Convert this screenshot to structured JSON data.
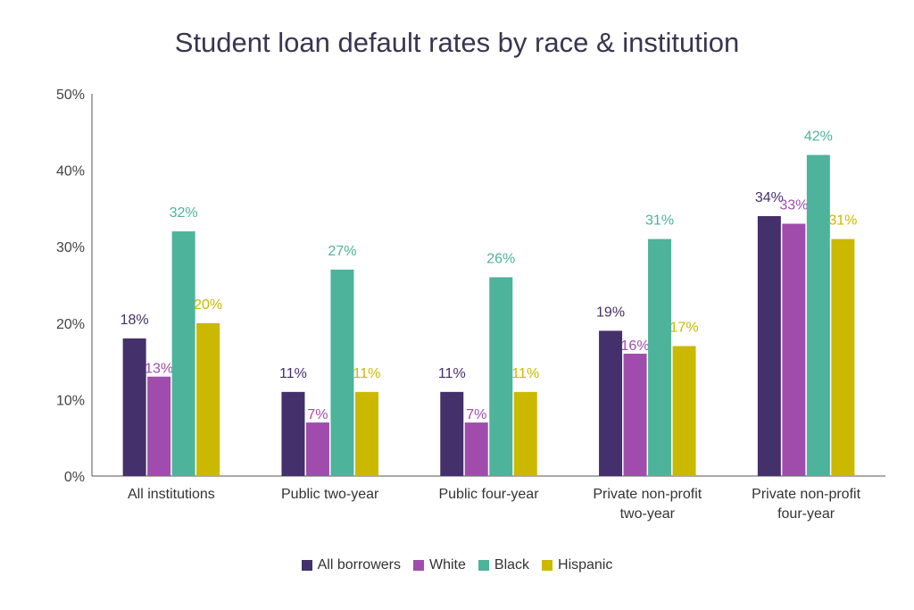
{
  "chart_data": {
    "type": "bar",
    "title": "Student loan default rates by race & institution",
    "categories": [
      [
        "All institutions"
      ],
      [
        "Public two-year"
      ],
      [
        "Public four-year"
      ],
      [
        "Private non-profit",
        "two-year"
      ],
      [
        "Private non-profit",
        "four-year"
      ]
    ],
    "series": [
      {
        "name": "All borrowers",
        "color": "#44306a",
        "values": [
          18,
          11,
          11,
          19,
          34
        ],
        "labels": [
          "18%",
          "11%",
          "11%",
          "19%",
          "34%"
        ]
      },
      {
        "name": "White",
        "color": "#a04cad",
        "values": [
          13,
          7,
          7,
          16,
          33
        ],
        "labels": [
          "13%",
          "7%",
          "7%",
          "16%",
          "33%"
        ]
      },
      {
        "name": "Black",
        "color": "#4db39a",
        "values": [
          32,
          27,
          26,
          31,
          42
        ],
        "labels": [
          "32%",
          "27%",
          "26%",
          "31%",
          "42%"
        ]
      },
      {
        "name": "Hispanic",
        "color": "#cbb800",
        "values": [
          20,
          11,
          11,
          17,
          31
        ],
        "labels": [
          "20%",
          "11%",
          "11%",
          "17%",
          "31%"
        ]
      }
    ],
    "ylim": [
      0,
      50
    ],
    "yticks": [
      "0%",
      "10%",
      "20%",
      "30%",
      "40%",
      "50%"
    ],
    "xlabel": "",
    "ylabel": "",
    "grid": false,
    "legend_position": "bottom"
  }
}
